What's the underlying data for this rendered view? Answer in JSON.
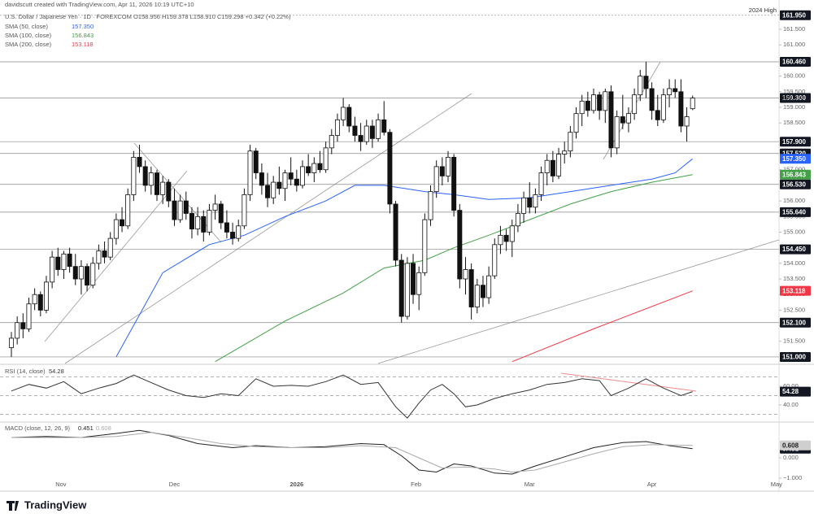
{
  "header": {
    "credit": "davidscutt created with TradingView.com, Apr 11, 2026 10:19 UTC+10",
    "symbol": "U.S. Dollar / Japanese Yen · 1D · FOREXCOM  O158.956  H159.378  L158.910  C159.298  +0.342 (+0.22%)",
    "logo": "TradingView"
  },
  "chart_data": [
    {
      "type": "candlestick",
      "ylim": [
        150.79,
        162.44
      ],
      "yticks": [
        {
          "value": 151.5,
          "label": "151.500"
        },
        {
          "value": 152,
          "label": "152.000"
        },
        {
          "value": 152.5,
          "label": "152.500"
        },
        {
          "value": 153,
          "label": "153.000"
        },
        {
          "value": 153.5,
          "label": "153.500"
        },
        {
          "value": 154,
          "label": "154.000"
        },
        {
          "value": 155,
          "label": "155.000"
        },
        {
          "value": 155.5,
          "label": "155.500"
        },
        {
          "value": 156,
          "label": "156.000"
        },
        {
          "value": 157,
          "label": "157.000"
        },
        {
          "value": 158.5,
          "label": "158.500"
        },
        {
          "value": 159,
          "label": "159.000"
        },
        {
          "value": 159.5,
          "label": "159.500"
        },
        {
          "value": 160,
          "label": "160.000"
        },
        {
          "value": 161,
          "label": "161.000"
        },
        {
          "value": 161.5,
          "label": "161.500"
        }
      ],
      "xticks": [
        {
          "value": 8.5,
          "label": "Nov"
        },
        {
          "value": 28,
          "label": "Dec"
        },
        {
          "value": 49,
          "label": "2026"
        },
        {
          "value": 69.5,
          "label": "Feb"
        },
        {
          "value": 89,
          "label": "Mar"
        },
        {
          "value": 110,
          "label": "Apr"
        },
        {
          "value": 131.4,
          "label": "May"
        }
      ],
      "last_label": "159.298",
      "levels": [
        {
          "value": 161.95,
          "label": "161.950",
          "note": "2024 High"
        },
        {
          "value": 160.46,
          "label": "160.460"
        },
        {
          "value": 159.3,
          "label": "159.300"
        },
        {
          "value": 157.9,
          "label": "157.900"
        },
        {
          "value": 157.52,
          "label": "157.520"
        },
        {
          "value": 156.53,
          "label": "156.530"
        },
        {
          "value": 155.64,
          "label": "155.640"
        },
        {
          "value": 154.45,
          "label": "154.450"
        },
        {
          "value": 152.1,
          "label": "152.100"
        },
        {
          "value": 151,
          "label": "151.000"
        }
      ],
      "ohlc": [
        [
          151.3,
          151.8,
          151.0,
          151.6
        ],
        [
          151.6,
          152.3,
          151.4,
          152.1
        ],
        [
          152.1,
          152.4,
          151.6,
          151.9
        ],
        [
          151.9,
          152.9,
          151.8,
          152.7
        ],
        [
          152.7,
          153.2,
          152.5,
          153.0
        ],
        [
          153.0,
          153.1,
          152.3,
          152.5
        ],
        [
          152.5,
          153.6,
          152.4,
          153.4
        ],
        [
          153.4,
          154.4,
          153.2,
          154.2
        ],
        [
          154.2,
          154.5,
          153.6,
          153.8
        ],
        [
          153.8,
          154.4,
          153.5,
          154.3
        ],
        [
          154.3,
          154.5,
          153.7,
          153.9
        ],
        [
          153.9,
          154.3,
          153.3,
          153.5
        ],
        [
          153.5,
          154.1,
          153.0,
          153.9
        ],
        [
          153.9,
          154.0,
          153.1,
          153.3
        ],
        [
          153.3,
          154.2,
          153.2,
          154.0
        ],
        [
          154.0,
          154.6,
          153.8,
          154.4
        ],
        [
          154.4,
          154.7,
          154.0,
          154.2
        ],
        [
          154.2,
          155.0,
          154.1,
          154.8
        ],
        [
          154.8,
          155.6,
          154.6,
          155.4
        ],
        [
          155.4,
          155.8,
          155.0,
          155.2
        ],
        [
          155.2,
          156.4,
          155.1,
          156.2
        ],
        [
          156.2,
          157.6,
          156.0,
          157.4
        ],
        [
          157.4,
          157.8,
          156.9,
          157.1
        ],
        [
          157.1,
          157.3,
          156.3,
          156.5
        ],
        [
          156.5,
          157.1,
          156.2,
          156.9
        ],
        [
          156.9,
          157.0,
          156.0,
          156.2
        ],
        [
          156.2,
          156.8,
          155.9,
          156.6
        ],
        [
          156.6,
          156.7,
          155.8,
          156.0
        ],
        [
          156.0,
          156.4,
          155.2,
          155.4
        ],
        [
          155.4,
          156.2,
          155.3,
          156.0
        ],
        [
          156.0,
          156.3,
          155.4,
          155.6
        ],
        [
          155.6,
          155.8,
          154.8,
          155.1
        ],
        [
          155.1,
          155.8,
          154.9,
          155.5
        ],
        [
          155.5,
          155.7,
          154.7,
          155.0
        ],
        [
          155.0,
          155.9,
          154.9,
          155.7
        ],
        [
          155.7,
          156.2,
          155.4,
          155.9
        ],
        [
          155.9,
          156.0,
          155.1,
          155.3
        ],
        [
          155.3,
          155.7,
          154.8,
          155.0
        ],
        [
          155.0,
          155.3,
          154.6,
          154.8
        ],
        [
          154.8,
          155.4,
          154.7,
          155.2
        ],
        [
          155.2,
          156.4,
          155.1,
          156.2
        ],
        [
          156.2,
          157.8,
          156.0,
          157.6
        ],
        [
          157.6,
          157.7,
          156.7,
          156.9
        ],
        [
          156.9,
          157.2,
          156.2,
          156.5
        ],
        [
          156.5,
          156.9,
          155.8,
          156.1
        ],
        [
          156.1,
          156.8,
          155.9,
          156.6
        ],
        [
          156.6,
          157.1,
          156.2,
          156.4
        ],
        [
          156.4,
          157.0,
          156.0,
          156.9
        ],
        [
          156.9,
          157.4,
          156.5,
          156.7
        ],
        [
          156.7,
          157.0,
          156.3,
          156.5
        ],
        [
          156.5,
          157.3,
          156.4,
          157.1
        ],
        [
          157.1,
          157.5,
          156.8,
          156.9
        ],
        [
          156.9,
          157.4,
          156.6,
          157.2
        ],
        [
          157.2,
          157.6,
          156.9,
          157.0
        ],
        [
          157.0,
          157.9,
          156.9,
          157.7
        ],
        [
          157.7,
          158.3,
          157.5,
          158.1
        ],
        [
          158.1,
          158.8,
          157.9,
          158.6
        ],
        [
          158.6,
          159.3,
          158.4,
          159.0
        ],
        [
          159.0,
          159.1,
          158.2,
          158.4
        ],
        [
          158.4,
          158.7,
          157.9,
          158.1
        ],
        [
          158.1,
          158.5,
          157.6,
          157.9
        ],
        [
          157.9,
          158.6,
          157.8,
          158.4
        ],
        [
          158.4,
          158.6,
          157.7,
          158.0
        ],
        [
          158.0,
          158.8,
          157.9,
          158.6
        ],
        [
          158.6,
          159.2,
          158.1,
          158.2
        ],
        [
          158.2,
          158.3,
          155.6,
          155.9
        ],
        [
          155.9,
          156.0,
          153.9,
          154.1
        ],
        [
          154.1,
          154.3,
          152.1,
          152.3
        ],
        [
          152.3,
          154.2,
          152.2,
          154.0
        ],
        [
          154.0,
          154.3,
          152.7,
          153.0
        ],
        [
          153.0,
          153.9,
          152.5,
          153.7
        ],
        [
          153.7,
          155.6,
          153.6,
          155.4
        ],
        [
          155.4,
          156.5,
          155.2,
          156.3
        ],
        [
          156.3,
          157.3,
          156.1,
          157.1
        ],
        [
          157.1,
          157.4,
          156.5,
          156.8
        ],
        [
          156.8,
          157.6,
          156.6,
          157.4
        ],
        [
          157.4,
          157.5,
          155.5,
          155.7
        ],
        [
          155.7,
          155.9,
          153.2,
          153.5
        ],
        [
          153.5,
          154.2,
          153.0,
          153.8
        ],
        [
          153.8,
          154.0,
          152.2,
          152.6
        ],
        [
          152.6,
          153.5,
          152.4,
          153.3
        ],
        [
          153.3,
          153.6,
          152.6,
          152.9
        ],
        [
          152.9,
          153.9,
          152.7,
          153.6
        ],
        [
          153.6,
          154.8,
          153.5,
          154.6
        ],
        [
          154.6,
          155.2,
          154.3,
          154.9
        ],
        [
          154.9,
          155.1,
          154.4,
          154.7
        ],
        [
          154.7,
          155.4,
          154.2,
          155.2
        ],
        [
          155.2,
          155.9,
          155.0,
          155.6
        ],
        [
          155.6,
          156.3,
          155.3,
          156.1
        ],
        [
          156.1,
          156.6,
          155.6,
          155.8
        ],
        [
          155.8,
          156.4,
          155.6,
          156.2
        ],
        [
          156.2,
          157.1,
          156.0,
          156.9
        ],
        [
          156.9,
          157.5,
          156.5,
          157.3
        ],
        [
          157.3,
          157.6,
          156.6,
          156.8
        ],
        [
          156.8,
          157.7,
          156.7,
          157.5
        ],
        [
          157.5,
          157.9,
          157.2,
          157.6
        ],
        [
          157.6,
          158.4,
          157.4,
          158.2
        ],
        [
          158.2,
          159.0,
          158.0,
          158.8
        ],
        [
          158.8,
          159.4,
          158.4,
          159.2
        ],
        [
          159.2,
          159.5,
          158.7,
          158.9
        ],
        [
          158.9,
          159.6,
          158.8,
          159.4
        ],
        [
          159.4,
          159.5,
          158.6,
          158.9
        ],
        [
          158.9,
          159.6,
          158.5,
          159.5
        ],
        [
          159.5,
          159.7,
          157.4,
          157.7
        ],
        [
          157.7,
          158.9,
          157.5,
          158.7
        ],
        [
          158.7,
          159.4,
          158.3,
          158.5
        ],
        [
          158.5,
          159.0,
          158.2,
          158.8
        ],
        [
          158.8,
          159.6,
          158.6,
          159.4
        ],
        [
          159.4,
          160.2,
          159.2,
          160.0
        ],
        [
          160.0,
          160.46,
          159.3,
          159.6
        ],
        [
          159.6,
          159.8,
          158.6,
          158.9
        ],
        [
          158.9,
          159.4,
          158.4,
          158.6
        ],
        [
          158.6,
          159.6,
          158.5,
          159.4
        ],
        [
          159.4,
          159.9,
          159.0,
          159.6
        ],
        [
          159.6,
          159.9,
          159.3,
          159.5
        ],
        [
          159.5,
          159.9,
          158.2,
          158.4
        ],
        [
          158.4,
          159.0,
          157.9,
          158.7
        ],
        [
          158.956,
          159.378,
          158.91,
          159.298
        ]
      ],
      "series": [
        {
          "name": "SMA (50, close)",
          "label": "157.350",
          "color": "#2962ff",
          "x": [
            18,
            26,
            34,
            40,
            47,
            54,
            59,
            64,
            71,
            76,
            82,
            89,
            96,
            103,
            110,
            114,
            117
          ],
          "values": [
            151.0,
            153.7,
            154.6,
            154.9,
            155.5,
            156.0,
            156.5,
            156.5,
            156.3,
            156.2,
            156.05,
            156.1,
            156.3,
            156.5,
            156.7,
            156.9,
            157.35
          ]
        },
        {
          "name": "SMA (100, close)",
          "label": "156.843",
          "color": "#43a047",
          "x": [
            35,
            47,
            57,
            64,
            71,
            76,
            82,
            89,
            96,
            103,
            110,
            117
          ],
          "values": [
            150.85,
            152.15,
            153.05,
            153.85,
            154.1,
            154.5,
            154.9,
            155.4,
            155.9,
            156.3,
            156.6,
            156.843
          ]
        },
        {
          "name": "SMA (200, close)",
          "label": "153.118",
          "color": "#f23645",
          "x": [
            86,
            100,
            117
          ],
          "values": [
            150.85,
            151.9,
            153.118
          ]
        }
      ]
    },
    {
      "type": "line",
      "title": "RSI (14, close)",
      "ylim": [
        23.5,
        77.4
      ],
      "yticks": [
        {
          "value": 60,
          "label": "60.00"
        },
        {
          "value": 40,
          "label": "40.00"
        }
      ],
      "levels": [
        70,
        50,
        30
      ],
      "series": [
        {
          "name": "54.28",
          "label": "54.28",
          "color": "#333333",
          "x": [
            0,
            3,
            6,
            9,
            12,
            15,
            18,
            21,
            24,
            27,
            30,
            33,
            36,
            39,
            42,
            45,
            48,
            51,
            54,
            57,
            60,
            63,
            66,
            68,
            70,
            72,
            74,
            76,
            78,
            80,
            83,
            86,
            89,
            92,
            95,
            98,
            101,
            103,
            106,
            109,
            112,
            115,
            117
          ],
          "values": [
            55,
            62,
            58,
            65,
            52,
            58,
            63,
            72,
            64,
            56,
            50,
            48,
            52,
            50,
            68,
            60,
            61,
            60,
            65,
            72,
            62,
            64,
            38,
            26,
            42,
            56,
            62,
            52,
            38,
            40,
            47,
            52,
            56,
            62,
            64,
            68,
            66,
            50,
            58,
            68,
            58,
            50,
            54.28
          ]
        }
      ]
    },
    {
      "type": "line",
      "title": "MACD (close, 12, 26, 9)",
      "ylim": [
        -1.48,
        1.52
      ],
      "yticks": [
        {
          "value": 0,
          "label": "0.000"
        },
        {
          "value": -1,
          "label": "−1.000"
        }
      ],
      "series": [
        {
          "name": "0.451",
          "label": "0.451",
          "color": "#222222",
          "x": [
            0,
            6,
            12,
            18,
            22,
            27,
            32,
            38,
            42,
            48,
            54,
            60,
            64,
            67,
            70,
            73,
            76,
            79,
            83,
            86,
            90,
            95,
            100,
            105,
            109,
            113,
            117
          ],
          "values": [
            1.0,
            1.05,
            1.0,
            1.2,
            1.35,
            1.1,
            0.7,
            0.5,
            0.6,
            0.5,
            0.55,
            0.7,
            0.65,
            0.1,
            -0.6,
            -0.7,
            -0.3,
            -0.4,
            -0.75,
            -0.8,
            -0.4,
            0.05,
            0.5,
            0.75,
            0.8,
            0.6,
            0.451
          ]
        },
        {
          "name": "0.608",
          "label": "0.608",
          "color": "#aaaaaa",
          "x": [
            0,
            6,
            12,
            18,
            24,
            30,
            36,
            42,
            48,
            54,
            60,
            66,
            70,
            74,
            78,
            83,
            86,
            90,
            95,
            100,
            105,
            110,
            117
          ],
          "values": [
            1.0,
            1.0,
            1.0,
            1.05,
            1.25,
            1.0,
            0.7,
            0.55,
            0.5,
            0.5,
            0.6,
            0.5,
            0.0,
            -0.5,
            -0.45,
            -0.55,
            -0.7,
            -0.6,
            -0.2,
            0.2,
            0.55,
            0.65,
            0.608
          ]
        }
      ]
    }
  ]
}
